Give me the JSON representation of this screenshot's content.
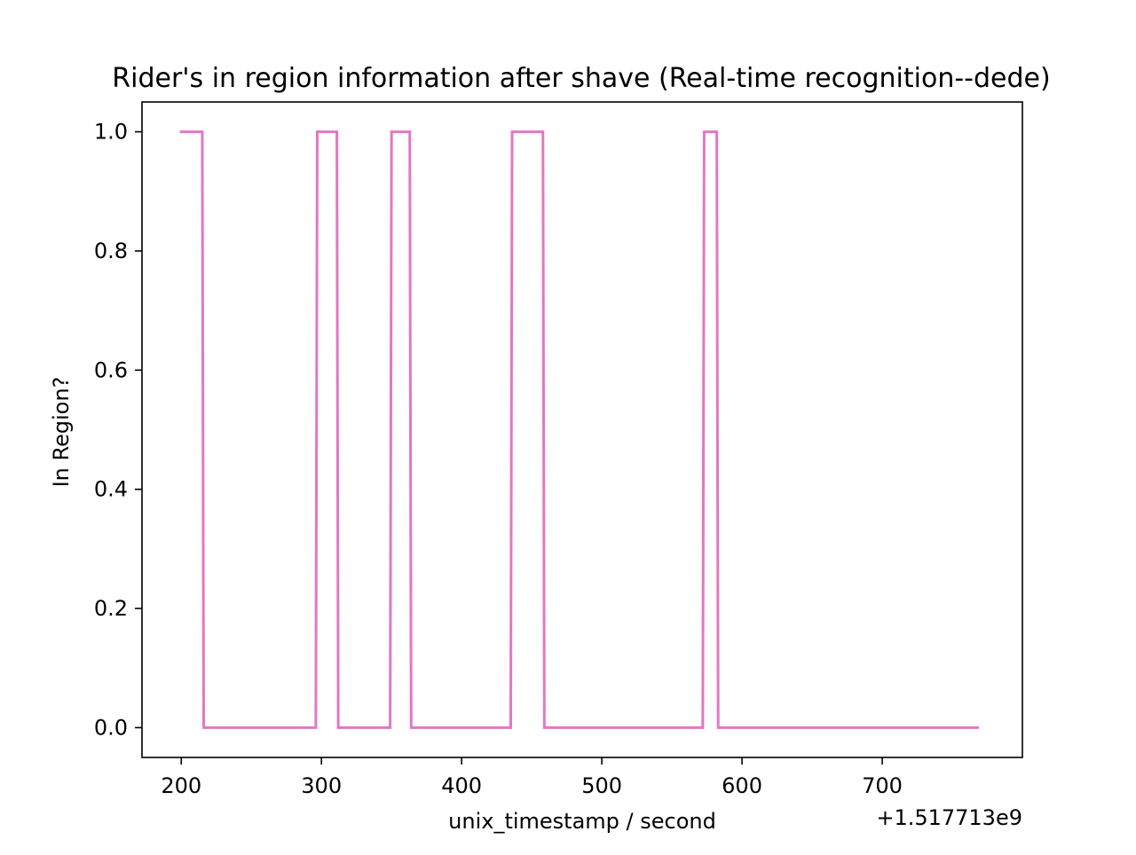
{
  "chart_data": {
    "type": "line",
    "title": "Rider's in region information after shave (Real-time recognition--dede)",
    "xlabel": "unix_timestamp / second",
    "ylabel": "In Region?",
    "x_offset_label": "+1.517713e9",
    "xlim": [
      172,
      800
    ],
    "ylim": [
      -0.05,
      1.05
    ],
    "x_ticks": [
      200,
      300,
      400,
      500,
      600,
      700
    ],
    "x_tick_labels": [
      "200",
      "300",
      "400",
      "500",
      "600",
      "700"
    ],
    "y_ticks": [
      0.0,
      0.2,
      0.4,
      0.6,
      0.8,
      1.0
    ],
    "y_tick_labels": [
      "0.0",
      "0.2",
      "0.4",
      "0.6",
      "0.8",
      "1.0"
    ],
    "grid": false,
    "series": [
      {
        "color": "#e377c2",
        "x": [
          199,
          215,
          216,
          296,
          297,
          311,
          312,
          349,
          350,
          363,
          364,
          435,
          436,
          458,
          459,
          572,
          573,
          582,
          583,
          769
        ],
        "y": [
          1,
          1,
          0,
          0,
          1,
          1,
          0,
          0,
          1,
          1,
          0,
          0,
          1,
          1,
          0,
          0,
          1,
          1,
          0,
          0
        ]
      }
    ]
  }
}
